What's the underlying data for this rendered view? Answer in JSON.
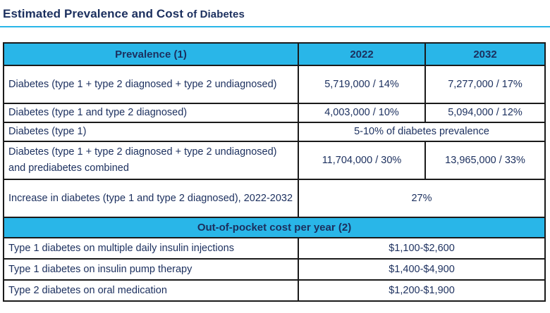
{
  "title": {
    "main": "Estimated Prevalence and Cost",
    "suffix": "of Diabetes"
  },
  "colors": {
    "accent": "#29b6e8",
    "text": "#1b2f5e"
  },
  "table": {
    "header": {
      "col1": "Prevalence (1)",
      "col2": "2022",
      "col3": "2032"
    },
    "prevalence_rows": [
      {
        "label": "Diabetes (type 1 + type 2 diagnosed + type 2 undiagnosed)",
        "y2022": "5,719,000 / 14%",
        "y2032": "7,277,000 / 17%"
      },
      {
        "label": "Diabetes (type 1 and type 2 diagnosed)",
        "y2022": "4,003,000 / 10%",
        "y2032": "5,094,000 / 12%"
      },
      {
        "label": "Diabetes (type 1)",
        "merged": "5-10% of diabetes prevalence"
      },
      {
        "label": "Diabetes (type 1 + type 2 diagnosed + type 2 undiagnosed) and prediabetes combined",
        "y2022": "11,704,000 / 30%",
        "y2032": "13,965,000 / 33%"
      },
      {
        "label": "Increase in diabetes (type 1 and type 2 diagnosed), 2022-2032",
        "merged": "27%"
      }
    ],
    "cost_header": "Out-of-pocket cost per year (2)",
    "cost_rows": [
      {
        "label": "Type 1 diabetes on multiple daily insulin injections",
        "value": "$1,100-$2,600"
      },
      {
        "label": "Type 1 diabetes on insulin pump therapy",
        "value": "$1,400-$4,900"
      },
      {
        "label": "Type 2 diabetes on oral medication",
        "value": "$1,200-$1,900"
      }
    ]
  }
}
